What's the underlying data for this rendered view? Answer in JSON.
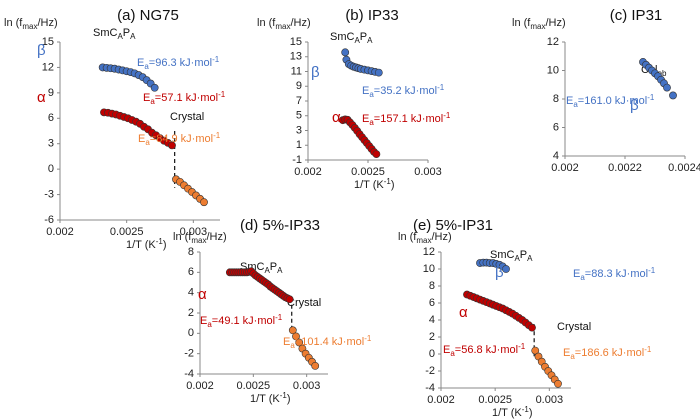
{
  "figure": {
    "sub_label": "A",
    "ob_sub": "ob"
  },
  "chart_data": [
    {
      "id": "a",
      "type": "scatter",
      "title": "(a) NG75",
      "ylabel": "ln (f",
      "ylabel_sub": "max",
      "ylabel_end": "/Hz)",
      "xlabel": "1/T (K",
      "xlabel_sup": "-1",
      "xlabel_end": ")",
      "xlim": [
        0.002,
        0.0032
      ],
      "ylim": [
        -6,
        15
      ],
      "xticks": [
        "0.002",
        "0.0025",
        "0.003"
      ],
      "yticks": [
        "-6",
        "-3",
        "0",
        "3",
        "6",
        "9",
        "12",
        "15"
      ],
      "phase_label": "SmC",
      "phase_sub": "P",
      "phase2_label": "Crystal",
      "transition_x": 0.00286,
      "transition_y": [
        -2.2,
        4.5
      ],
      "series": [
        {
          "name": "β",
          "color": "#4472C4",
          "points": [
            [
              0.00232,
              12.0
            ],
            [
              0.00235,
              11.95
            ],
            [
              0.00238,
              11.9
            ],
            [
              0.00241,
              11.85
            ],
            [
              0.00244,
              11.75
            ],
            [
              0.00247,
              11.65
            ],
            [
              0.0025,
              11.55
            ],
            [
              0.00253,
              11.45
            ],
            [
              0.00256,
              11.3
            ],
            [
              0.00259,
              11.1
            ],
            [
              0.00262,
              10.85
            ],
            [
              0.00265,
              10.5
            ],
            [
              0.00268,
              10.1
            ],
            [
              0.00271,
              9.6
            ]
          ],
          "annotation": "E",
          "ann_value": "=96.3 kJ·mol",
          "ann_sup": "-1"
        },
        {
          "name": "α",
          "color": "#C00000",
          "points": [
            [
              0.00233,
              6.7
            ],
            [
              0.00236,
              6.65
            ],
            [
              0.00239,
              6.55
            ],
            [
              0.00242,
              6.45
            ],
            [
              0.00245,
              6.3
            ],
            [
              0.00248,
              6.15
            ],
            [
              0.00251,
              6.0
            ],
            [
              0.00254,
              5.8
            ],
            [
              0.00257,
              5.6
            ],
            [
              0.0026,
              5.35
            ],
            [
              0.00263,
              5.0
            ],
            [
              0.00266,
              4.7
            ],
            [
              0.00269,
              4.3
            ],
            [
              0.00272,
              4.0
            ],
            [
              0.00275,
              3.65
            ],
            [
              0.00278,
              3.35
            ],
            [
              0.00281,
              3.1
            ],
            [
              0.00284,
              2.8
            ]
          ],
          "annotation": "E",
          "ann_value": "=57.1 kJ·mol",
          "ann_sup": "-1"
        },
        {
          "name": "",
          "color": "#ED7D31",
          "points": [
            [
              0.00287,
              -1.2
            ],
            [
              0.0029,
              -1.5
            ],
            [
              0.00293,
              -1.9
            ],
            [
              0.00296,
              -2.3
            ],
            [
              0.00299,
              -2.7
            ],
            [
              0.00302,
              -3.1
            ],
            [
              0.00305,
              -3.5
            ],
            [
              0.00308,
              -3.9
            ]
          ],
          "annotation": "E",
          "ann_value": "=84.9 kJ·mol",
          "ann_sup": "-1"
        }
      ]
    },
    {
      "id": "b",
      "type": "scatter",
      "title": "(b) IP33",
      "ylabel": "ln (f",
      "ylabel_sub": "max",
      "ylabel_end": "/Hz)",
      "xlabel": "1/T (K",
      "xlabel_sup": "-1",
      "xlabel_end": ")",
      "xlim": [
        0.002,
        0.003
      ],
      "ylim": [
        -1,
        15
      ],
      "xticks": [
        "0.002",
        "0.0025",
        "0.003"
      ],
      "yticks": [
        "-1",
        "1",
        "3",
        "5",
        "7",
        "9",
        "11",
        "13",
        "15"
      ],
      "phase_label": "SmC",
      "phase_sub": "P",
      "series": [
        {
          "name": "β",
          "color": "#4472C4",
          "points": [
            [
              0.00231,
              13.6
            ],
            [
              0.00232,
              12.6
            ],
            [
              0.00234,
              12.0
            ],
            [
              0.00236,
              11.8
            ],
            [
              0.00238,
              11.65
            ],
            [
              0.0024,
              11.55
            ],
            [
              0.00242,
              11.45
            ],
            [
              0.00244,
              11.35
            ],
            [
              0.00247,
              11.25
            ],
            [
              0.0025,
              11.15
            ],
            [
              0.00253,
              11.05
            ],
            [
              0.00256,
              10.95
            ],
            [
              0.00259,
              10.85
            ]
          ],
          "annotation": "E",
          "ann_value": "=35.2 kJ·mol",
          "ann_sup": "-1"
        },
        {
          "name": "α",
          "color": "#C00000",
          "points": [
            [
              0.00229,
              4.4
            ],
            [
              0.00231,
              4.5
            ],
            [
              0.00233,
              4.45
            ],
            [
              0.00235,
              4.1
            ],
            [
              0.00237,
              3.75
            ],
            [
              0.00239,
              3.35
            ],
            [
              0.00241,
              2.95
            ],
            [
              0.00243,
              2.5
            ],
            [
              0.00245,
              2.1
            ],
            [
              0.00247,
              1.7
            ],
            [
              0.00249,
              1.3
            ],
            [
              0.00251,
              0.9
            ],
            [
              0.00253,
              0.5
            ],
            [
              0.00255,
              0.1
            ],
            [
              0.00257,
              -0.2
            ]
          ],
          "annotation": "E",
          "ann_value": "=157.1 kJ·mol",
          "ann_sup": "-1"
        }
      ]
    },
    {
      "id": "c",
      "type": "scatter",
      "title": "(c) IP31",
      "ylabel": "ln (f",
      "ylabel_sub": "max",
      "ylabel_end": "/Hz)",
      "xlim": [
        0.002,
        0.0024
      ],
      "ylim": [
        4,
        12
      ],
      "xticks": [
        "0.002",
        "0.0022",
        "0.0024"
      ],
      "yticks": [
        "4",
        "6",
        "8",
        "10",
        "12"
      ],
      "phase_label": "Col",
      "series": [
        {
          "name": "β",
          "color": "#4472C4",
          "points": [
            [
              0.00226,
              10.6
            ],
            [
              0.00227,
              10.4
            ],
            [
              0.00228,
              10.2
            ],
            [
              0.00229,
              10.0
            ],
            [
              0.0023,
              9.8
            ],
            [
              0.00231,
              9.6
            ],
            [
              0.00232,
              9.35
            ],
            [
              0.00233,
              9.1
            ],
            [
              0.00234,
              8.8
            ],
            [
              0.00236,
              8.25
            ]
          ],
          "annotation": "E",
          "ann_value": "=161.0 kJ·mol",
          "ann_sup": "-1"
        }
      ]
    },
    {
      "id": "d",
      "type": "scatter",
      "title": "(d) 5%-IP33",
      "ylabel": "ln (f",
      "ylabel_sub": "max",
      "ylabel_end": "/Hz)",
      "xlabel": "1/T (K",
      "xlabel_sup": "-1",
      "xlabel_end": ")",
      "xlim": [
        0.002,
        0.0032
      ],
      "ylim": [
        -4,
        8
      ],
      "xticks": [
        "0.002",
        "0.0025",
        "0.003"
      ],
      "yticks": [
        "-4",
        "-2",
        "0",
        "2",
        "4",
        "6",
        "8"
      ],
      "phase_label": "SmC",
      "phase_sub": "P",
      "phase2_label": "Crystal",
      "transition_x": 0.00286,
      "transition_y": [
        0.5,
        3.5
      ],
      "series": [
        {
          "name": "α",
          "color": "#C00000",
          "points": [
            [
              0.00228,
              6.0
            ],
            [
              0.0023,
              6.0
            ],
            [
              0.00232,
              6.0
            ],
            [
              0.00234,
              6.0
            ],
            [
              0.00236,
              6.0
            ],
            [
              0.00238,
              6.0
            ],
            [
              0.0024,
              6.0
            ],
            [
              0.00242,
              6.0
            ],
            [
              0.00244,
              6.0
            ],
            [
              0.00246,
              6.05
            ],
            [
              0.00248,
              6.1
            ],
            [
              0.0025,
              5.9
            ],
            [
              0.00252,
              5.7
            ],
            [
              0.00254,
              5.55
            ],
            [
              0.00256,
              5.4
            ],
            [
              0.00258,
              5.25
            ],
            [
              0.0026,
              5.1
            ],
            [
              0.00262,
              4.95
            ],
            [
              0.00264,
              4.8
            ],
            [
              0.00266,
              4.6
            ],
            [
              0.00268,
              4.45
            ],
            [
              0.0027,
              4.3
            ],
            [
              0.00272,
              4.15
            ],
            [
              0.00274,
              4.0
            ],
            [
              0.00276,
              3.85
            ],
            [
              0.00278,
              3.7
            ],
            [
              0.0028,
              3.55
            ],
            [
              0.00282,
              3.45
            ],
            [
              0.00284,
              3.35
            ]
          ],
          "annotation": "E",
          "ann_value": "=49.1 kJ·mol",
          "ann_sup": "-1"
        },
        {
          "name": "",
          "color": "#ED7D31",
          "points": [
            [
              0.00287,
              0.3
            ],
            [
              0.0029,
              -0.3
            ],
            [
              0.00293,
              -0.9
            ],
            [
              0.00296,
              -1.5
            ],
            [
              0.00299,
              -2.0
            ],
            [
              0.00302,
              -2.4
            ],
            [
              0.00305,
              -2.8
            ],
            [
              0.00308,
              -3.2
            ]
          ],
          "annotation": "E",
          "ann_value": "=101.4 kJ·mol",
          "ann_sup": "-1"
        }
      ]
    },
    {
      "id": "e",
      "type": "scatter",
      "title": "(e) 5%-IP31",
      "ylabel": "ln (f",
      "ylabel_sub": "max",
      "ylabel_end": "/Hz)",
      "xlabel": "1/T (K",
      "xlabel_sup": "-1",
      "xlabel_end": ")",
      "xlim": [
        0.002,
        0.0032
      ],
      "ylim": [
        -4,
        12
      ],
      "xticks": [
        "0.002",
        "0.0025",
        "0.003"
      ],
      "yticks": [
        "-4",
        "-2",
        "0",
        "2",
        "4",
        "6",
        "8",
        "10",
        "12"
      ],
      "phase_label": "SmC",
      "phase_sub": "P",
      "phase2_label": "Crystal",
      "transition_x": 0.00286,
      "transition_y": [
        -0.5,
        3.5
      ],
      "series": [
        {
          "name": "β",
          "color": "#4472C4",
          "points": [
            [
              0.00236,
              10.7
            ],
            [
              0.00239,
              10.75
            ],
            [
              0.00242,
              10.75
            ],
            [
              0.00245,
              10.7
            ],
            [
              0.00248,
              10.7
            ],
            [
              0.00251,
              10.6
            ],
            [
              0.00254,
              10.5
            ],
            [
              0.00257,
              10.3
            ],
            [
              0.0026,
              10.0
            ]
          ],
          "annotation": "E",
          "ann_value": "=88.3 kJ·mol",
          "ann_sup": "-1"
        },
        {
          "name": "α",
          "color": "#C00000",
          "points": [
            [
              0.00224,
              7.0
            ],
            [
              0.00227,
              6.85
            ],
            [
              0.0023,
              6.7
            ],
            [
              0.00233,
              6.55
            ],
            [
              0.00236,
              6.4
            ],
            [
              0.00239,
              6.25
            ],
            [
              0.00242,
              6.1
            ],
            [
              0.00245,
              5.95
            ],
            [
              0.00248,
              5.8
            ],
            [
              0.00251,
              5.65
            ],
            [
              0.00254,
              5.5
            ],
            [
              0.00257,
              5.35
            ],
            [
              0.0026,
              5.15
            ],
            [
              0.00263,
              4.95
            ],
            [
              0.00266,
              4.75
            ],
            [
              0.00269,
              4.5
            ],
            [
              0.00272,
              4.25
            ],
            [
              0.00275,
              4.0
            ],
            [
              0.00278,
              3.7
            ],
            [
              0.00281,
              3.4
            ],
            [
              0.00284,
              3.1
            ]
          ],
          "annotation": "E",
          "ann_value": "=56.8 kJ·mol",
          "ann_sup": "-1"
        },
        {
          "name": "",
          "color": "#ED7D31",
          "points": [
            [
              0.00287,
              0.4
            ],
            [
              0.0029,
              -0.3
            ],
            [
              0.00293,
              -0.9
            ],
            [
              0.00296,
              -1.5
            ],
            [
              0.00299,
              -2.0
            ],
            [
              0.00302,
              -2.5
            ],
            [
              0.00305,
              -3.0
            ],
            [
              0.00308,
              -3.5
            ]
          ],
          "annotation": "E",
          "ann_value": "=186.6 kJ·mol",
          "ann_sup": "-1"
        }
      ]
    }
  ]
}
